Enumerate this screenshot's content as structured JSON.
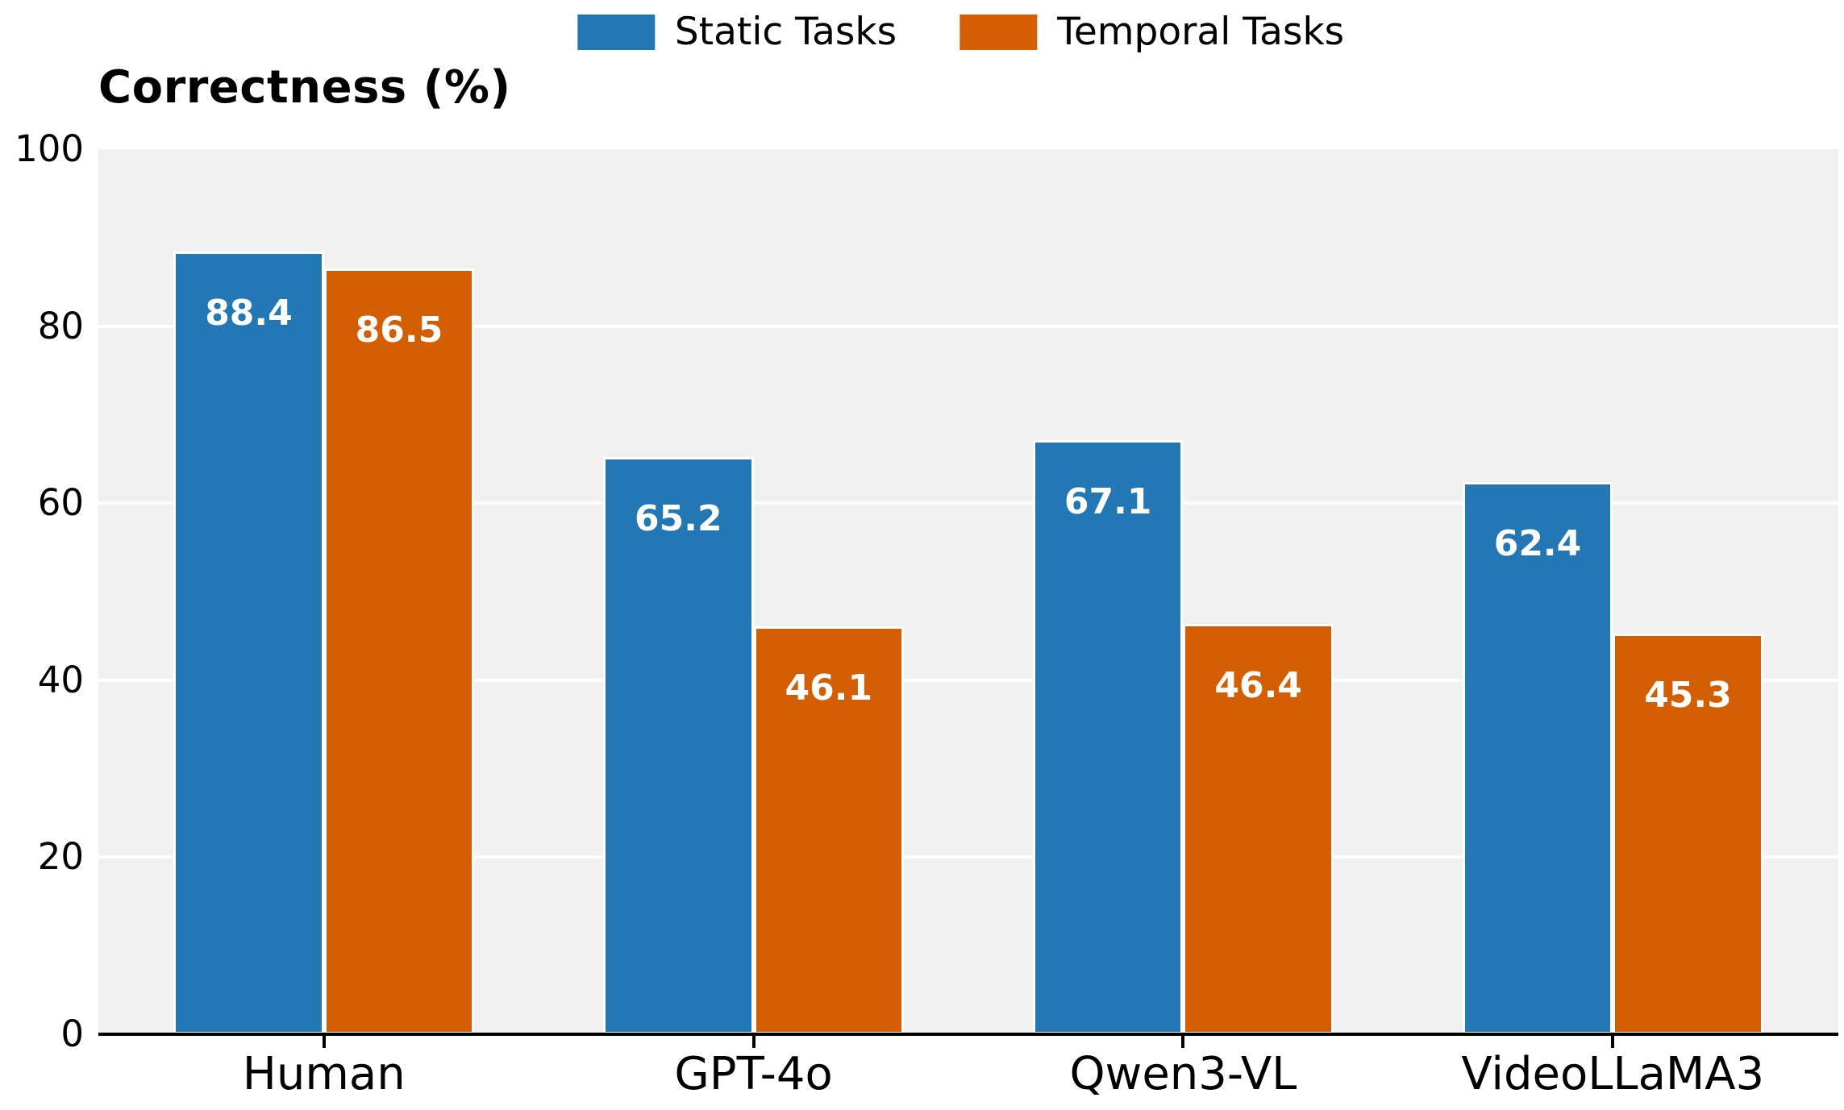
{
  "chart_data": {
    "type": "bar",
    "title": "Correctness (%)",
    "categories": [
      "Human",
      "GPT-4o",
      "Qwen3-VL",
      "VideoLLaMA3"
    ],
    "series": [
      {
        "name": "Static Tasks",
        "color": "#2277b4",
        "values": [
          88.4,
          65.2,
          67.1,
          62.4
        ]
      },
      {
        "name": "Temporal Tasks",
        "color": "#d45e04",
        "values": [
          86.5,
          46.1,
          46.4,
          45.3
        ]
      }
    ],
    "ylim": [
      0,
      100
    ],
    "yticks": [
      0,
      20,
      40,
      60,
      80,
      100
    ],
    "xlabel": "",
    "ylabel": "",
    "grid": "horizontal",
    "legend_position": "top-center",
    "value_labels": "inside-top"
  },
  "colors": {
    "plot_background": "#f1f1f1",
    "gridline": "#ffffff",
    "axis": "#000000",
    "value_label_text": "#ffffff",
    "figure_background": "#ffffff",
    "text": "#000000"
  }
}
